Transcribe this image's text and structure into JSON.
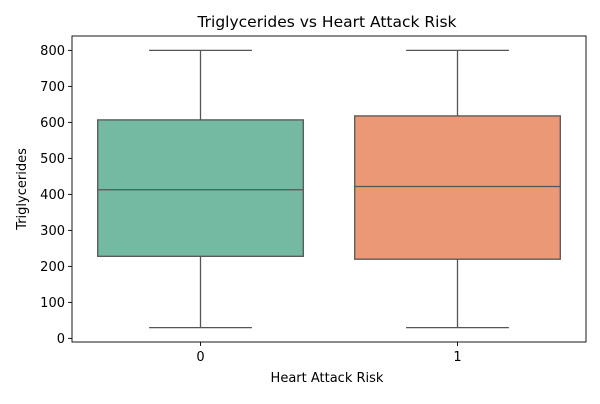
{
  "chart_data": {
    "type": "box",
    "title": "Triglycerides vs Heart Attack Risk",
    "xlabel": "Heart Attack Risk",
    "ylabel": "Triglycerides",
    "categories": [
      "0",
      "1"
    ],
    "yticks": [
      0,
      100,
      200,
      300,
      400,
      500,
      600,
      700,
      800
    ],
    "ylim": [
      -10,
      840
    ],
    "grid": false,
    "boxes": [
      {
        "category": "0",
        "min": 30,
        "q1": 228,
        "median": 413,
        "q3": 607,
        "max": 800,
        "color": "#74b9a2"
      },
      {
        "category": "1",
        "min": 30,
        "q1": 220,
        "median": 422,
        "q3": 618,
        "max": 800,
        "color": "#ea9876"
      }
    ],
    "line_color": "#555555"
  }
}
